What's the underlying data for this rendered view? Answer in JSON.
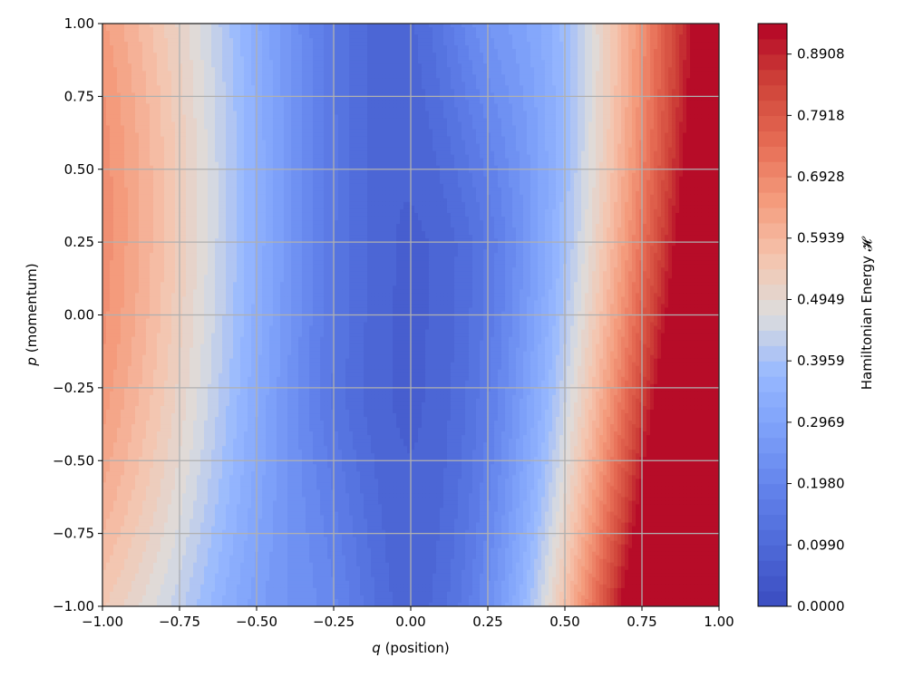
{
  "chart_data": {
    "type": "heatmap",
    "subtype": "filled-contour",
    "colormap": "coolwarm",
    "xlabel": {
      "symbol": "q",
      "text": " (position)"
    },
    "ylabel": {
      "symbol": "p",
      "text": " (momentum)"
    },
    "xlim": [
      -1.0,
      1.0
    ],
    "ylim": [
      -1.0,
      1.0
    ],
    "x_ticks": [
      -1.0,
      -0.75,
      -0.5,
      -0.25,
      0.0,
      0.25,
      0.5,
      0.75,
      1.0
    ],
    "y_ticks": [
      -1.0,
      -0.75,
      -0.5,
      -0.25,
      0.0,
      0.25,
      0.5,
      0.75,
      1.0
    ],
    "x_tick_labels": [
      "−1.00",
      "−0.75",
      "−0.50",
      "−0.25",
      "0.00",
      "0.25",
      "0.50",
      "0.75",
      "1.00"
    ],
    "y_tick_labels": [
      "−1.00",
      "−0.75",
      "−0.50",
      "−0.25",
      "0.00",
      "0.25",
      "0.50",
      "0.75",
      "1.00"
    ],
    "grid": true,
    "colorbar": {
      "label": "Hamiltonian Energy 𝓗",
      "range": [
        0.0,
        0.94
      ],
      "tick_values": [
        0.0,
        0.099,
        0.198,
        0.2969,
        0.3959,
        0.4949,
        0.5939,
        0.6928,
        0.7918,
        0.8908
      ],
      "tick_labels": [
        "0.0000",
        "0.0990",
        "0.1980",
        "0.2969",
        "0.3959",
        "0.4949",
        "0.5939",
        "0.6928",
        "0.7918",
        "0.8908"
      ],
      "levels": 38
    }
  }
}
